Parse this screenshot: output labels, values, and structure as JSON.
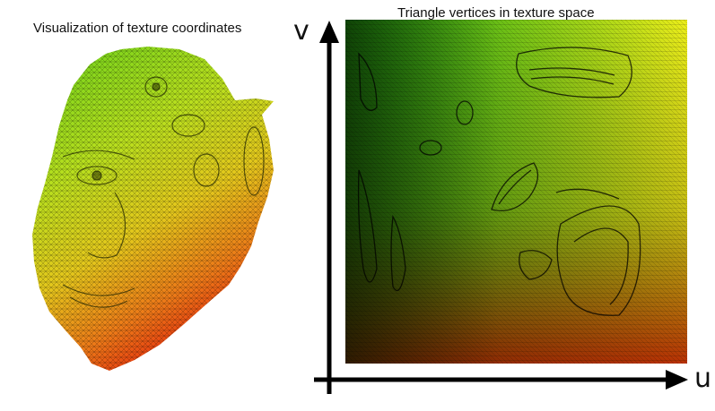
{
  "left_panel": {
    "caption": "Visualization of texture coordinates"
  },
  "right_panel": {
    "caption": "Triangle vertices in texture space",
    "axis_v_label": "v",
    "axis_u_label": "u"
  },
  "colors": {
    "gradient_top_left": "#2fd11a",
    "gradient_top_right": "#e9ef1a",
    "gradient_bottom_left": "#0c1a02",
    "gradient_bottom_right": "#e51a0a",
    "mesh_line": "#000000"
  }
}
